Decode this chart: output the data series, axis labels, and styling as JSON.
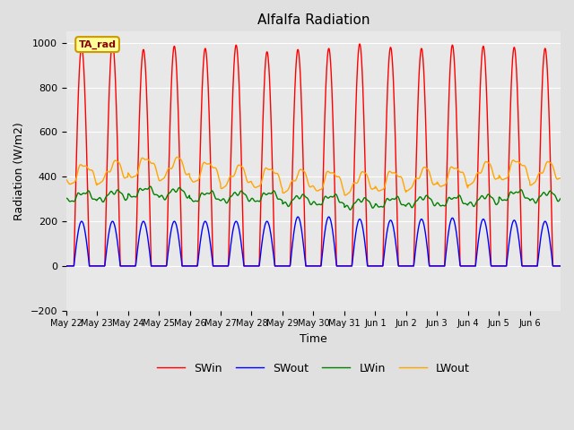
{
  "title": "Alfalfa Radiation",
  "xlabel": "Time",
  "ylabel": "Radiation (W/m2)",
  "ylim": [
    -200,
    1050
  ],
  "fig_bg_color": "#e0e0e0",
  "plot_bg_color": "#e8e8e8",
  "annotation_text": "TA_rad",
  "annotation_bg": "#ffff99",
  "annotation_border": "#cc9900",
  "series": [
    "SWin",
    "SWout",
    "LWin",
    "LWout"
  ],
  "colors": [
    "red",
    "blue",
    "green",
    "orange"
  ],
  "linewidth": 1.0,
  "num_days": 16,
  "x_tick_labels": [
    "May 22",
    "May 23",
    "May 24",
    "May 25",
    "May 26",
    "May 27",
    "May 28",
    "May 29",
    "May 30",
    "May 31",
    "Jun 1",
    "Jun 2",
    "Jun 3",
    "Jun 4",
    "Jun 5",
    "Jun 6"
  ],
  "SWin_peaks": [
    980,
    998,
    970,
    985,
    975,
    990,
    960,
    970,
    975,
    995,
    980,
    975,
    990,
    985,
    980,
    975
  ],
  "SWout_peaks": [
    200,
    200,
    200,
    200,
    200,
    200,
    200,
    220,
    220,
    210,
    205,
    210,
    215,
    210,
    205,
    200
  ],
  "LWin_bases": [
    310,
    315,
    330,
    325,
    310,
    310,
    310,
    295,
    295,
    280,
    285,
    290,
    290,
    295,
    315,
    310
  ],
  "LWout_bases": [
    410,
    420,
    440,
    435,
    420,
    400,
    395,
    380,
    380,
    370,
    380,
    390,
    400,
    415,
    430,
    415
  ],
  "day_start": 0.25,
  "day_end": 0.75
}
